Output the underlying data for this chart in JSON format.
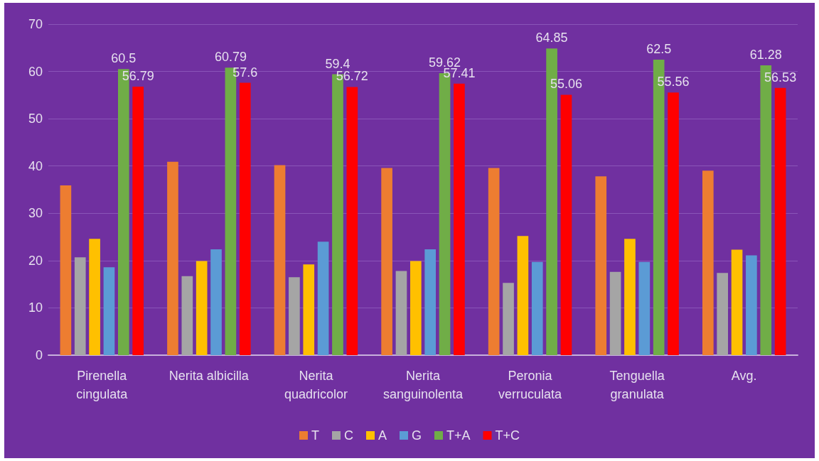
{
  "chart_data": {
    "type": "bar",
    "categories": [
      "Pirenella\ncingulata",
      "Nerita albicilla",
      "Nerita\nquadricolor",
      "Nerita\nsanguinolenta",
      "Peronia\nverruculata",
      "Tenguella\ngranulata",
      "Avg."
    ],
    "series": [
      {
        "name": "T",
        "color": "#ed7d31",
        "values": [
          35.9,
          40.9,
          40.2,
          39.6,
          39.6,
          37.8,
          39.0
        ]
      },
      {
        "name": "C",
        "color": "#a5a5a5",
        "values": [
          20.7,
          16.7,
          16.5,
          17.8,
          15.3,
          17.6,
          17.4
        ]
      },
      {
        "name": "A",
        "color": "#ffc000",
        "values": [
          24.6,
          19.9,
          19.2,
          19.9,
          25.2,
          24.6,
          22.3
        ]
      },
      {
        "name": "G",
        "color": "#5b9bd5",
        "values": [
          18.6,
          22.4,
          24.0,
          22.4,
          19.7,
          19.7,
          21.1
        ]
      },
      {
        "name": "T+A",
        "color": "#70ad47",
        "values": [
          60.5,
          60.79,
          59.4,
          59.62,
          64.85,
          62.5,
          61.28
        ],
        "value_labels": [
          "60.5",
          "60.79",
          "59.4",
          "59.62",
          "64.85",
          "62.5",
          "61.28"
        ]
      },
      {
        "name": "T+C",
        "color": "#ff0000",
        "values": [
          56.79,
          57.6,
          56.72,
          57.41,
          55.06,
          55.56,
          56.53
        ],
        "value_labels": [
          "56.79",
          "57.6",
          "56.72",
          "57.41",
          "55.06",
          "55.56",
          "56.53"
        ]
      }
    ],
    "ylim": [
      0,
      70
    ],
    "yticks": [
      0,
      10,
      20,
      30,
      40,
      50,
      60,
      70
    ],
    "grid": "y",
    "legend": "bottom"
  }
}
